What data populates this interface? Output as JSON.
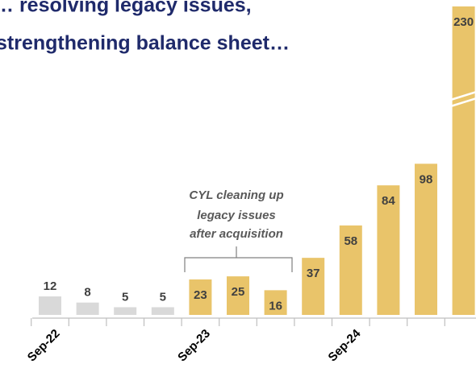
{
  "chart_data": {
    "type": "bar",
    "title": [
      "… resolving legacy issues,",
      "strengthening balance sheet…"
    ],
    "categories": [
      "Sep-22",
      null,
      null,
      null,
      "Sep-23",
      null,
      null,
      null,
      "Sep-24",
      null,
      null,
      null
    ],
    "values": [
      12,
      8,
      5,
      5,
      23,
      25,
      16,
      37,
      58,
      84,
      98,
      230
    ],
    "colors": [
      "#d9d9d9",
      "#d9d9d9",
      "#d9d9d9",
      "#d9d9d9",
      "#e9c46a",
      "#e9c46a",
      "#e9c46a",
      "#e9c46a",
      "#e9c46a",
      "#e9c46a",
      "#e9c46a",
      "#e9c46a"
    ],
    "ylim": [
      0,
      200
    ],
    "axis_break": true,
    "annotation": [
      "CYL cleaning up",
      "legacy issues",
      "after acquisition"
    ]
  }
}
